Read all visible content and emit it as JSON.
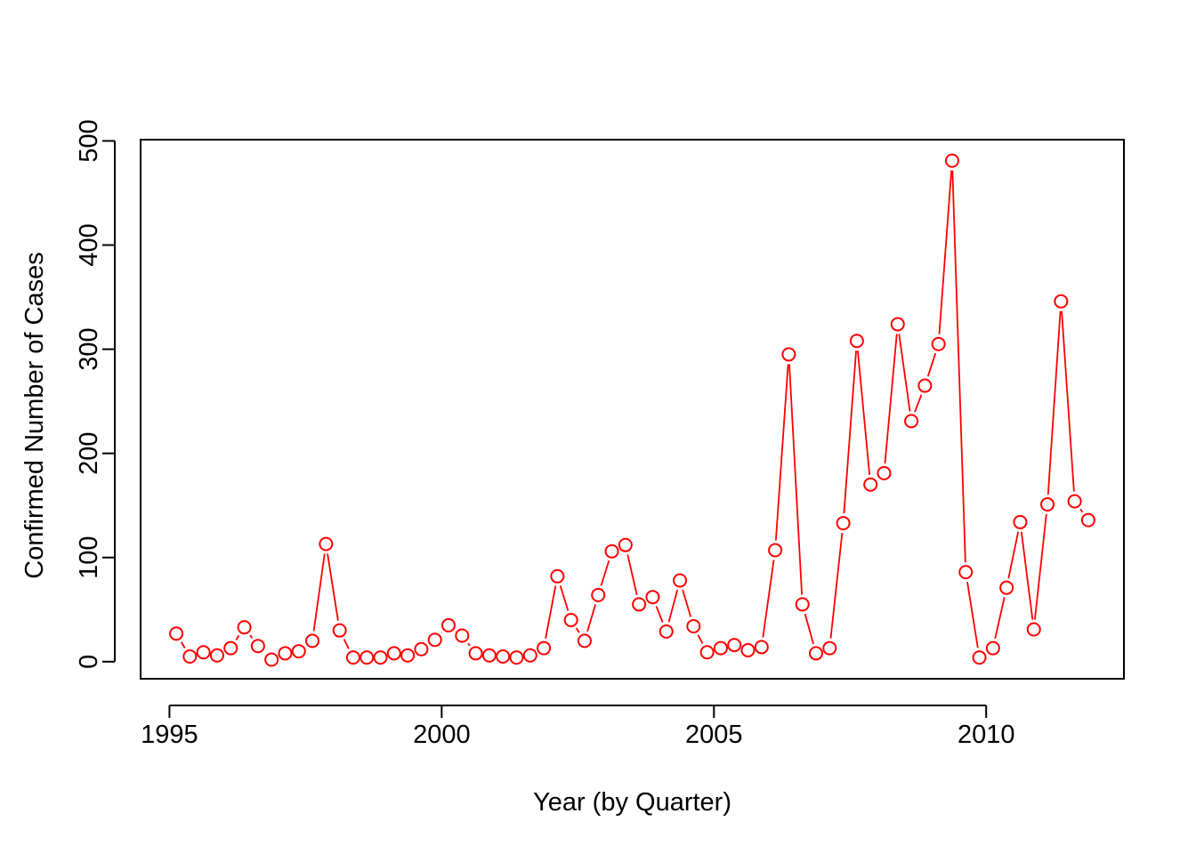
{
  "chart_data": {
    "type": "line",
    "title": "",
    "xlabel": "Year (by Quarter)",
    "ylabel": "Confirmed Number of Cases",
    "xlim": [
      1994.47,
      2012.53
    ],
    "ylim": [
      -16.4,
      501.2
    ],
    "x_ticks": [
      1995,
      2000,
      2005,
      2010
    ],
    "x_tick_labels": [
      "1995",
      "2000",
      "2005",
      "2010"
    ],
    "y_ticks": [
      0,
      100,
      200,
      300,
      400,
      500
    ],
    "y_tick_labels": [
      "0",
      "100",
      "200",
      "300",
      "400",
      "500"
    ],
    "grid": false,
    "style": "points-and-lines",
    "color": "#ff0000",
    "series": [
      {
        "x": [
          1995.125,
          1995.375,
          1995.625,
          1995.875,
          1996.125,
          1996.375,
          1996.625,
          1996.875,
          1997.125,
          1997.375,
          1997.625,
          1997.875,
          1998.125,
          1998.375,
          1998.625,
          1998.875,
          1999.125,
          1999.375,
          1999.625,
          1999.875,
          2000.125,
          2000.375,
          2000.625,
          2000.875,
          2001.125,
          2001.375,
          2001.625,
          2001.875,
          2002.125,
          2002.375,
          2002.625,
          2002.875,
          2003.125,
          2003.375,
          2003.625,
          2003.875,
          2004.125,
          2004.375,
          2004.625,
          2004.875,
          2005.125,
          2005.375,
          2005.625,
          2005.875,
          2006.125,
          2006.375,
          2006.625,
          2006.875,
          2007.125,
          2007.375,
          2007.625,
          2007.875,
          2008.125,
          2008.375,
          2008.625,
          2008.875,
          2009.125,
          2009.375,
          2009.625,
          2009.875,
          2010.125,
          2010.375,
          2010.625,
          2010.875,
          2011.125,
          2011.375,
          2011.625,
          2011.875
        ],
        "values": [
          27,
          5,
          9,
          6,
          13,
          33,
          15,
          2,
          8,
          10,
          20,
          113,
          30,
          4,
          4,
          4,
          8,
          6,
          12,
          21,
          35,
          25,
          8,
          6,
          5,
          4,
          6,
          13,
          82,
          40,
          20,
          64,
          106,
          112,
          55,
          62,
          29,
          78,
          34,
          9,
          13,
          16,
          11,
          14,
          107,
          295,
          55,
          8,
          13,
          133,
          308,
          170,
          181,
          324,
          231,
          265,
          305,
          481,
          86,
          4,
          13,
          71,
          134,
          31,
          151,
          346,
          154,
          136
        ]
      }
    ]
  }
}
